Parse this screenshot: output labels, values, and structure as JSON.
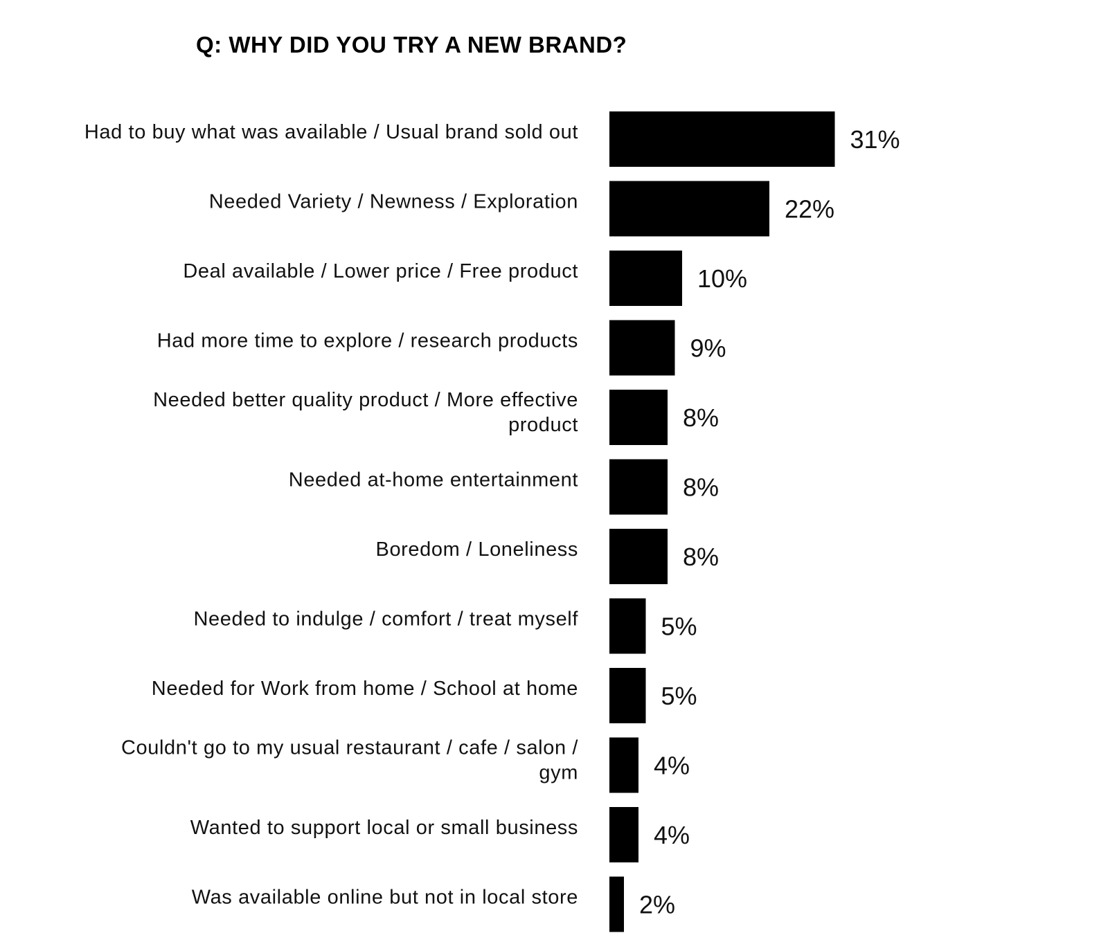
{
  "chart_data": {
    "type": "bar",
    "orientation": "horizontal",
    "title": "Q:  WHY DID YOU TRY A NEW BRAND?",
    "categories": [
      [
        "Had to buy what was available / Usual brand sold out"
      ],
      [
        "Needed Variety / Newness / Exploration"
      ],
      [
        "Deal available / Lower price / Free product"
      ],
      [
        "Had more time to explore / research products"
      ],
      [
        "Needed better quality product / More effective",
        "product"
      ],
      [
        "Needed at-home entertainment"
      ],
      [
        "Boredom / Loneliness"
      ],
      [
        "Needed to indulge / comfort / treat myself"
      ],
      [
        "Needed for Work from home / School at home"
      ],
      [
        "Couldn't go to my usual restaurant / cafe / salon /",
        "gym"
      ],
      [
        "Wanted to support local or small business"
      ],
      [
        "Was available online but not in local store"
      ]
    ],
    "values": [
      31,
      22,
      10,
      9,
      8,
      8,
      8,
      5,
      5,
      4,
      4,
      2
    ],
    "value_labels": [
      "31%",
      "22%",
      "10%",
      "9%",
      "8%",
      "8%",
      "8%",
      "5%",
      "5%",
      "4%",
      "4%",
      "2%"
    ],
    "unit": "%",
    "bar_color": "#000000",
    "grid": false,
    "legend": "none"
  }
}
